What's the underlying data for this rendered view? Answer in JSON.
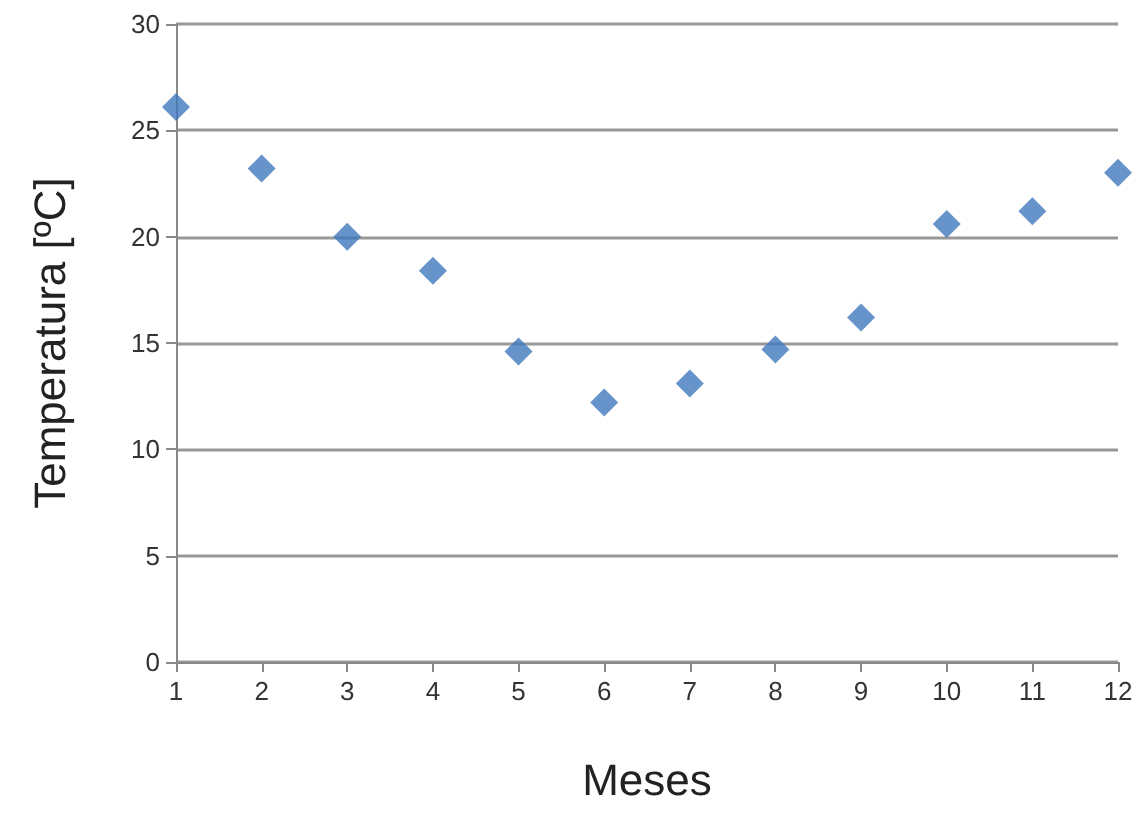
{
  "chart_data": {
    "type": "scatter",
    "xlabel": "Meses",
    "ylabel": "Temperatura [ºC]",
    "x": [
      1,
      2,
      3,
      4,
      5,
      6,
      7,
      8,
      9,
      10,
      11,
      12
    ],
    "series": [
      {
        "color": "#4178be",
        "values": [
          26.1,
          23.2,
          20.0,
          18.4,
          14.6,
          12.2,
          13.1,
          14.7,
          16.2,
          20.6,
          21.2,
          23.0
        ]
      }
    ],
    "xlim": [
      1,
      12
    ],
    "xticks": [
      1,
      2,
      3,
      4,
      5,
      6,
      7,
      8,
      9,
      10,
      11,
      12
    ],
    "ylim": [
      0,
      30
    ],
    "yticks": [
      0,
      5,
      10,
      15,
      20,
      25,
      30
    ],
    "grid": "y",
    "marker": "diamond"
  }
}
